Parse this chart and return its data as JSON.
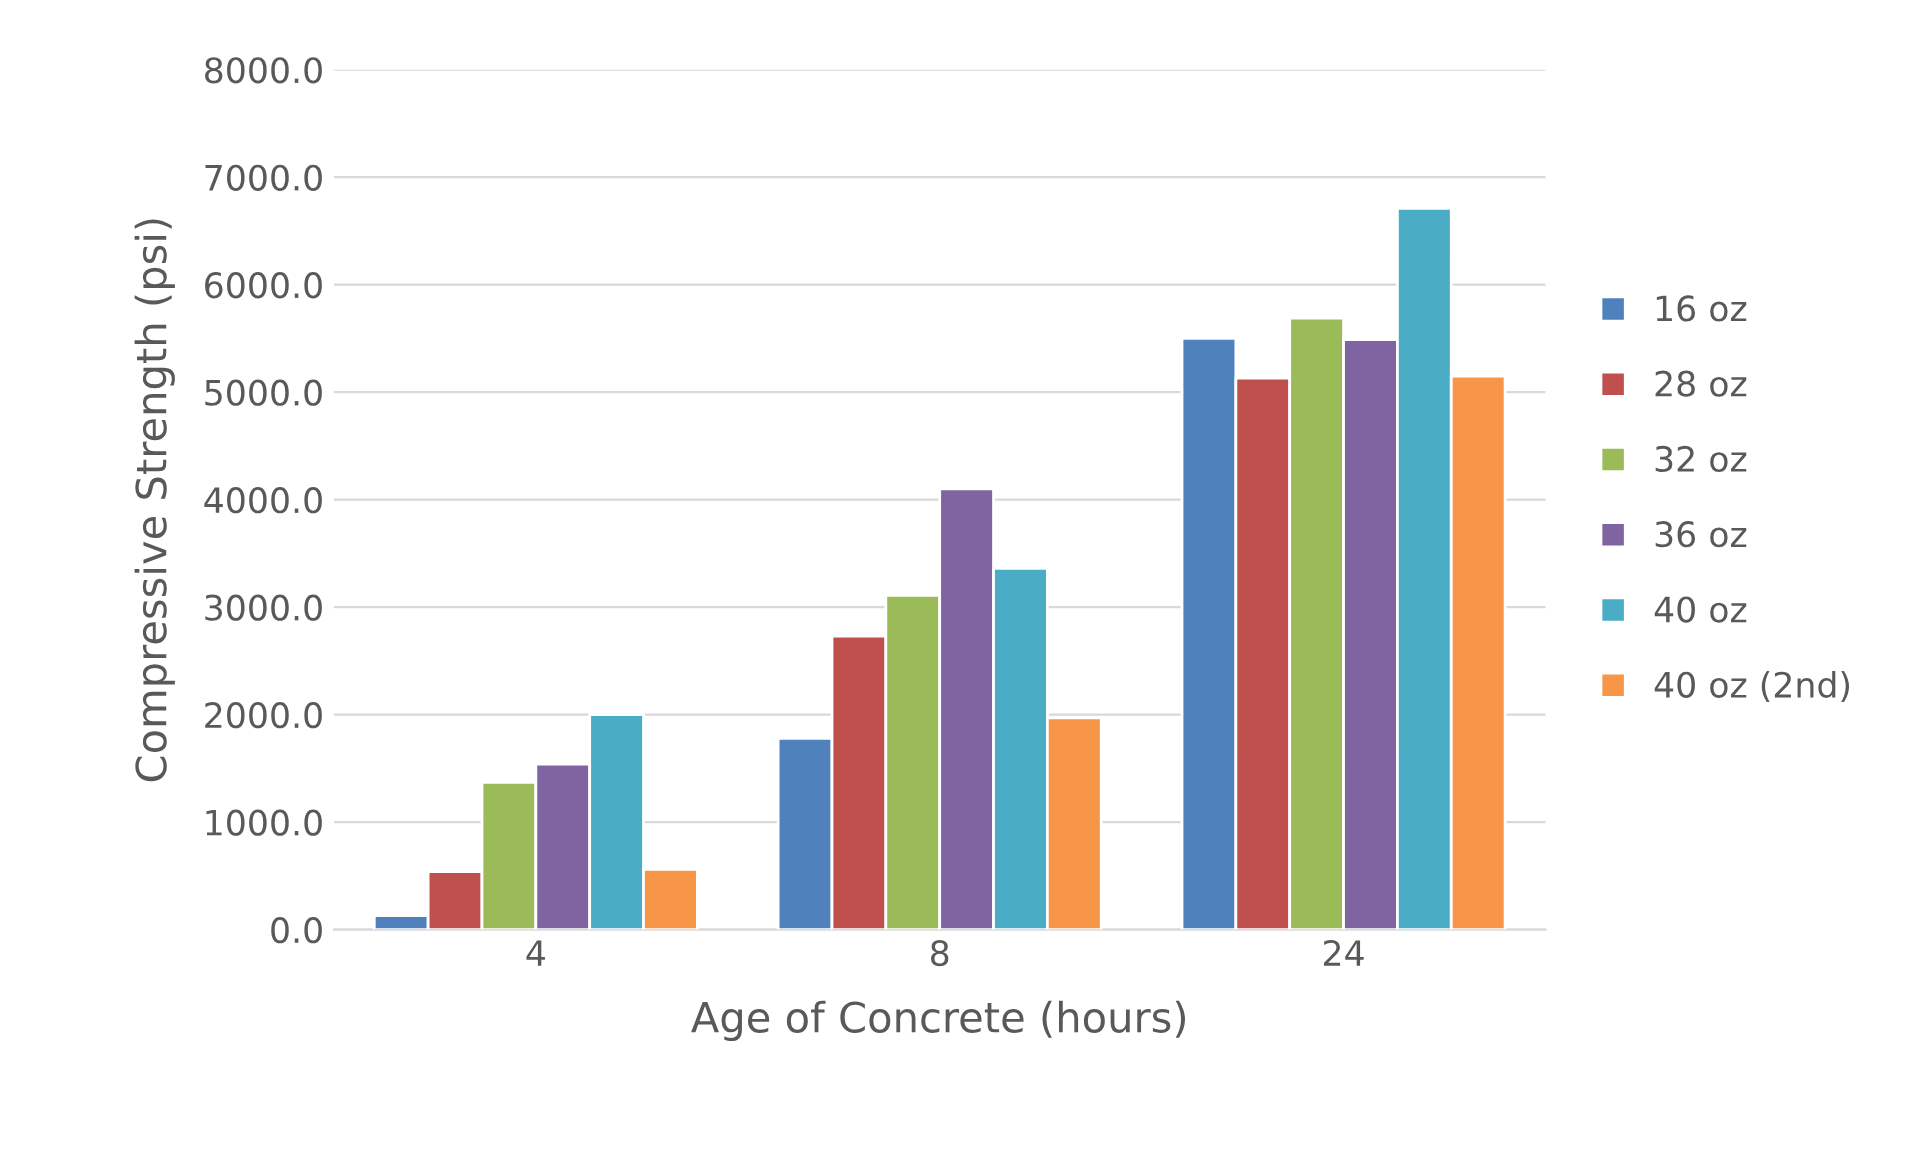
{
  "chart_data": {
    "type": "bar",
    "xlabel": "Age of Concrete (hours)",
    "ylabel": "Compressive Strength (psi)",
    "categories": [
      "4",
      "8",
      "24"
    ],
    "series": [
      {
        "name": "16 oz",
        "color": "#4f81bd",
        "values": [
          130,
          1780,
          5500
        ]
      },
      {
        "name": "28 oz",
        "color": "#c0504d",
        "values": [
          540,
          2730,
          5130
        ]
      },
      {
        "name": "32 oz",
        "color": "#9bbb59",
        "values": [
          1370,
          3110,
          5690
        ]
      },
      {
        "name": "36 oz",
        "color": "#8064a2",
        "values": [
          1540,
          4100,
          5490
        ]
      },
      {
        "name": "40 oz",
        "color": "#4bacc6",
        "values": [
          2000,
          3360,
          6710
        ]
      },
      {
        "name": "40 oz (2nd)",
        "color": "#f79646",
        "values": [
          560,
          1970,
          5150
        ]
      }
    ],
    "ylim": [
      0,
      8000
    ],
    "yticks": [
      {
        "value": 0,
        "label": "0.0"
      },
      {
        "value": 1000,
        "label": "1000.0"
      },
      {
        "value": 2000,
        "label": "2000.0"
      },
      {
        "value": 3000,
        "label": "3000.0"
      },
      {
        "value": 4000,
        "label": "4000.0"
      },
      {
        "value": 5000,
        "label": "5000.0"
      },
      {
        "value": 6000,
        "label": "6000.0"
      },
      {
        "value": 7000,
        "label": "7000.0"
      },
      {
        "value": 8000,
        "label": "8000.0"
      }
    ],
    "grid": "y",
    "legend": "right"
  }
}
